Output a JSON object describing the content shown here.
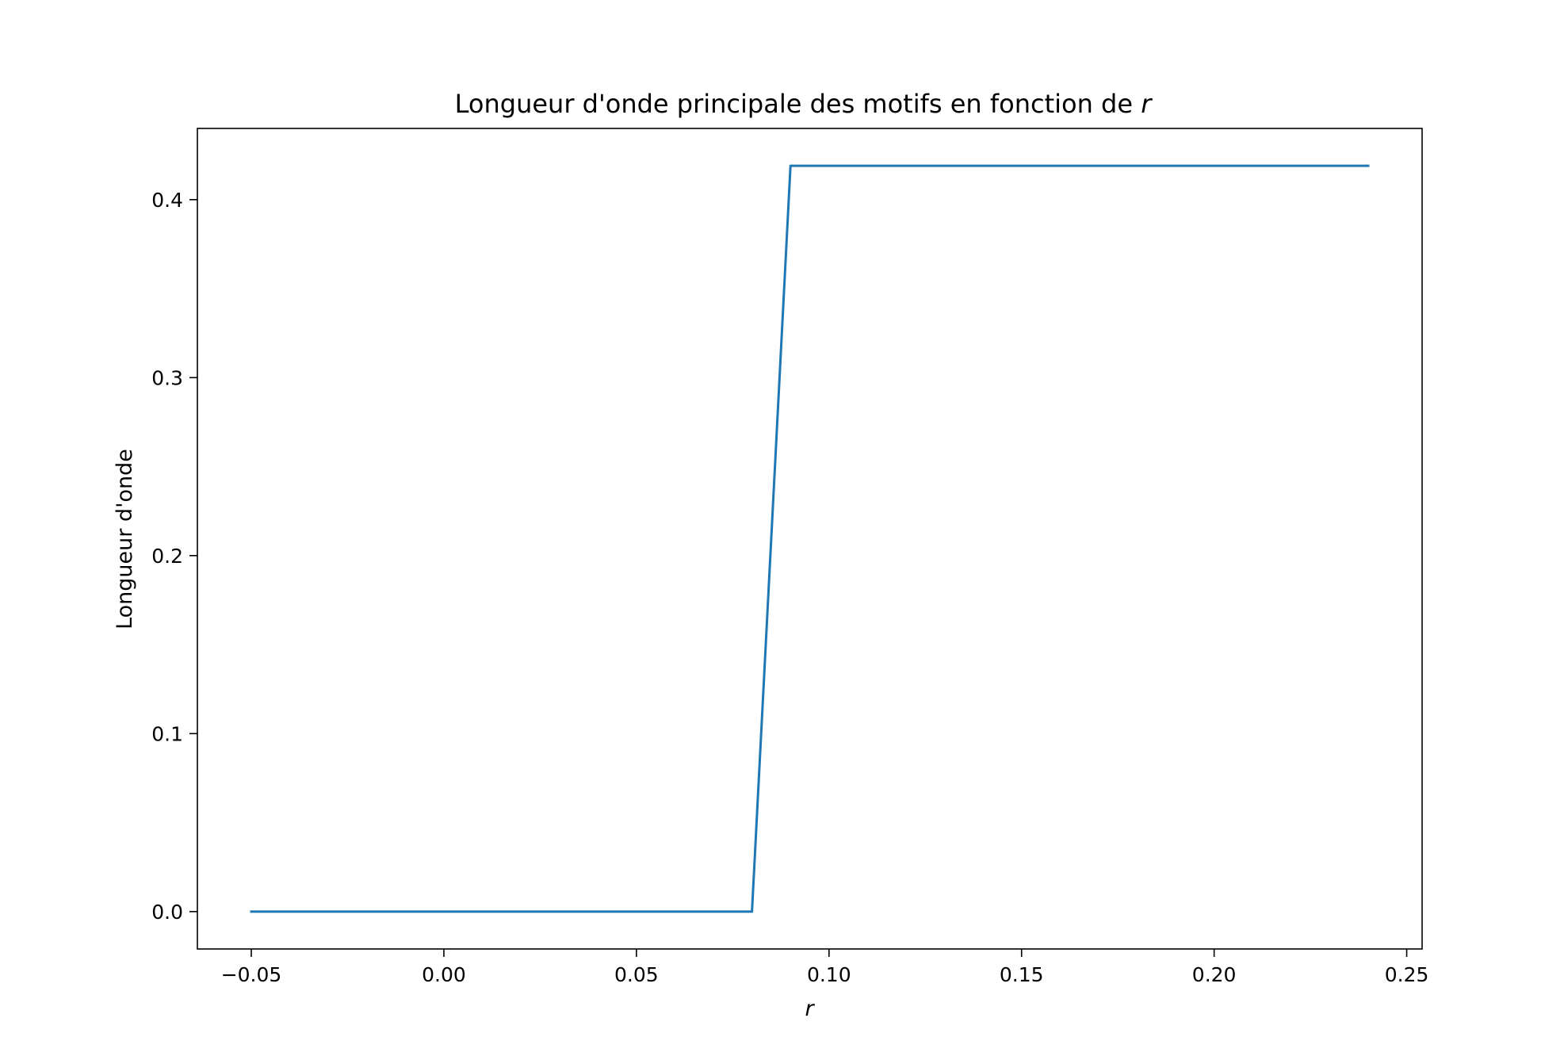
{
  "chart_data": {
    "type": "line",
    "title": "Longueur d'onde principale des motifs en fonction de ",
    "title_variable": "r",
    "xlabel": "r",
    "ylabel": "Longueur d'onde",
    "xlim": [
      -0.064,
      0.254
    ],
    "ylim": [
      -0.021,
      0.44
    ],
    "xticks": [
      -0.05,
      0.0,
      0.05,
      0.1,
      0.15,
      0.2,
      0.25
    ],
    "xtick_labels": [
      "−0.05",
      "0.00",
      "0.05",
      "0.10",
      "0.15",
      "0.20",
      "0.25"
    ],
    "yticks": [
      0.0,
      0.1,
      0.2,
      0.3,
      0.4
    ],
    "ytick_labels": [
      "0.0",
      "0.1",
      "0.2",
      "0.3",
      "0.4"
    ],
    "grid": false,
    "series": [
      {
        "color": "#1f77b4",
        "x": [
          -0.05,
          0.08,
          0.09,
          0.24
        ],
        "y": [
          0.0,
          0.0,
          0.419,
          0.419
        ]
      }
    ]
  }
}
